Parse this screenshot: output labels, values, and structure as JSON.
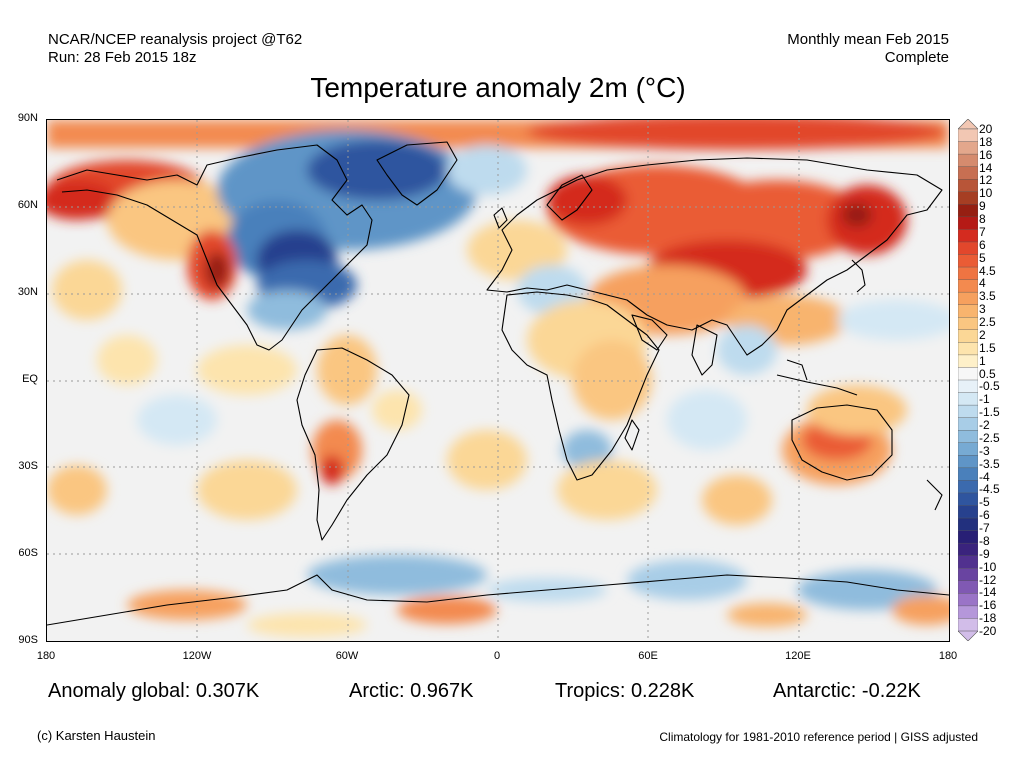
{
  "header": {
    "left_line1": "NCAR/NCEP reanalysis project @T62",
    "left_line2": "Run: 28 Feb 2015 18z",
    "right_line1": "Monthly mean Feb 2015",
    "right_line2": "Complete"
  },
  "title": "Temperature anomaly 2m (°C)",
  "map": {
    "projection": "equirectangular",
    "lat_labels": [
      "90N",
      "60N",
      "30N",
      "EQ",
      "30S",
      "60S",
      "90S"
    ],
    "lon_labels": [
      "180",
      "120W",
      "60W",
      "0",
      "60E",
      "120E",
      "180"
    ],
    "grid": "dotted"
  },
  "colorbar": {
    "labels": [
      "20",
      "18",
      "16",
      "14",
      "12",
      "10",
      "9",
      "8",
      "7",
      "6",
      "5",
      "4.5",
      "4",
      "3.5",
      "3",
      "2.5",
      "2",
      "1.5",
      "1",
      "0.5",
      "-0.5",
      "-1",
      "-1.5",
      "-2",
      "-2.5",
      "-3",
      "-3.5",
      "-4",
      "-4.5",
      "-5",
      "-6",
      "-7",
      "-8",
      "-9",
      "-10",
      "-12",
      "-14",
      "-16",
      "-18",
      "-20"
    ],
    "colors": [
      "#f2c7b3",
      "#e3a78c",
      "#d58b6e",
      "#c76f52",
      "#b85538",
      "#a63e23",
      "#961f12",
      "#b51a16",
      "#d42b1f",
      "#e2472c",
      "#ea5c35",
      "#ef7442",
      "#f38a4f",
      "#f6a05e",
      "#f8b46e",
      "#fac681",
      "#fbd796",
      "#fde4ad",
      "#fef0c9",
      "#f7f7f7",
      "#e7f1f8",
      "#d4e8f4",
      "#bedbee",
      "#a8cde7",
      "#8fbcdd",
      "#77aad3",
      "#5f95c7",
      "#4a80bb",
      "#3b6aae",
      "#2f559f",
      "#27418e",
      "#22307e",
      "#281f75",
      "#3a237d",
      "#51318f",
      "#6944a1",
      "#8059b3",
      "#9a74c7",
      "#b597da",
      "#d2bde9"
    ]
  },
  "stats": {
    "global": "Anomaly global: 0.307K",
    "arctic": "Arctic: 0.967K",
    "tropics": "Tropics: 0.228K",
    "antarctic": "Antarctic: -0.22K"
  },
  "credits": {
    "left": "(c) Karsten Haustein",
    "right": "Climatology for 1981-2010 reference period | GISS adjusted"
  }
}
